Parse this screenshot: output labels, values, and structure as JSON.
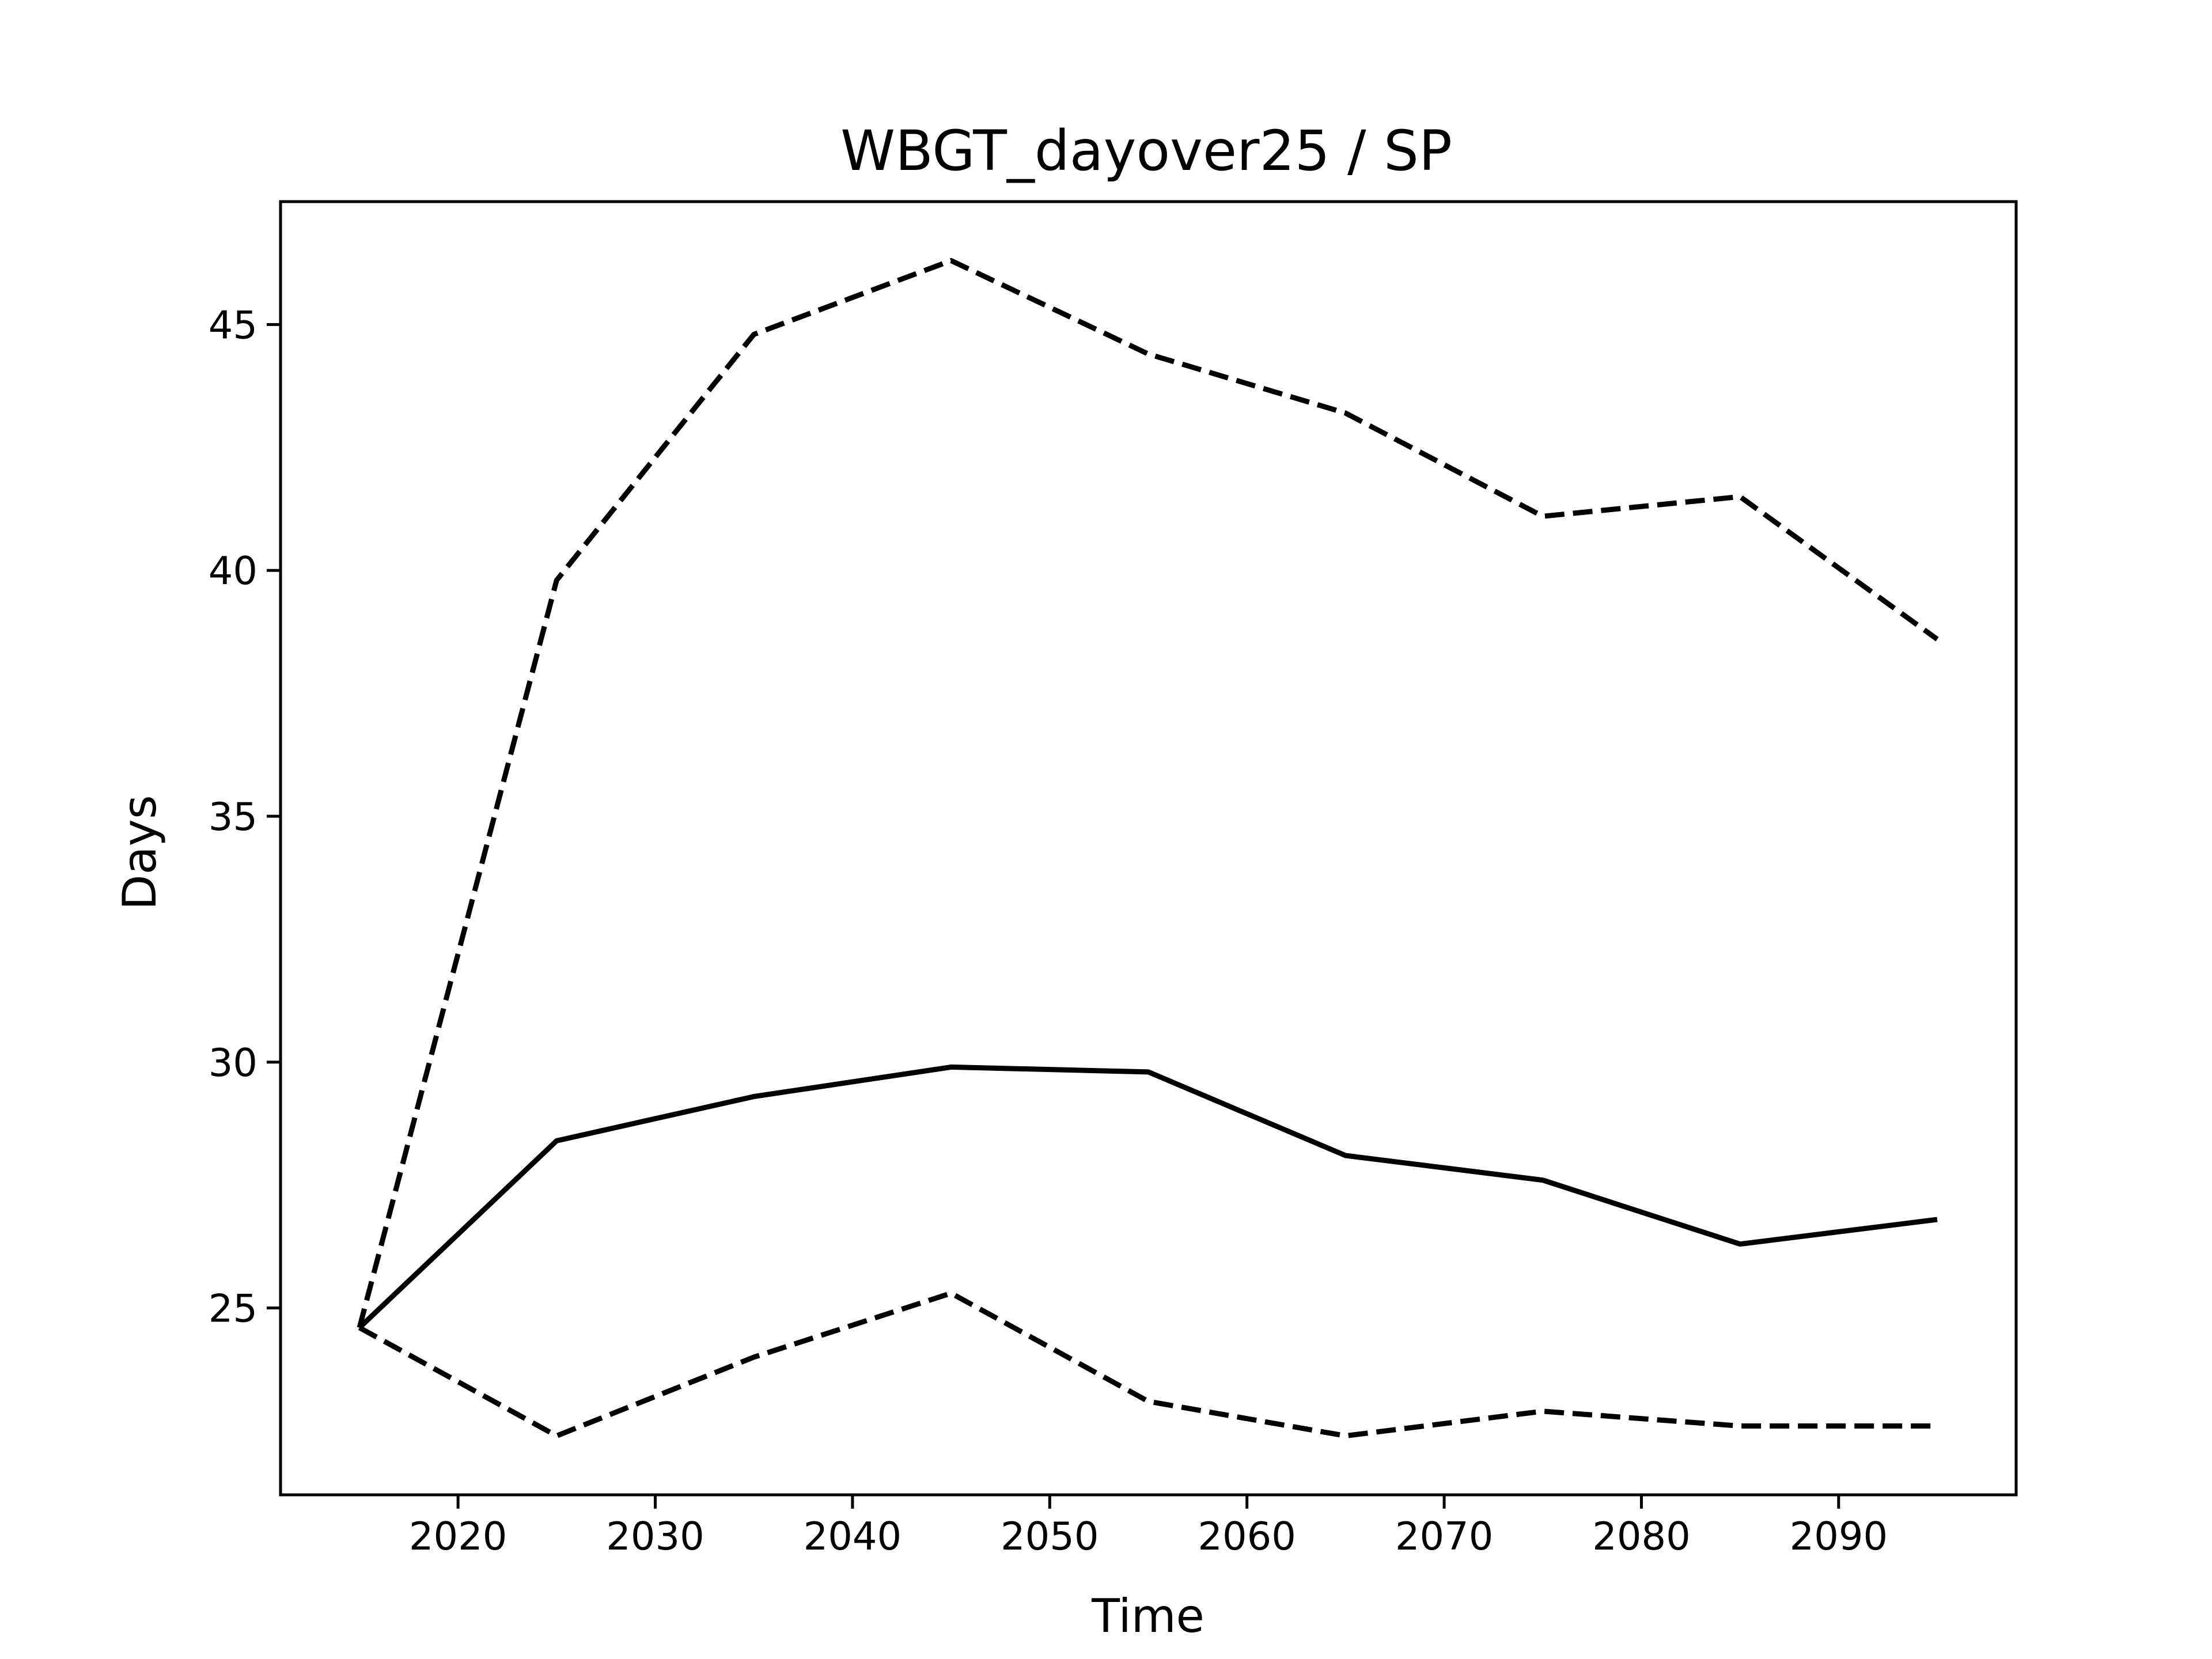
{
  "chart_data": {
    "type": "line",
    "title": "WBGT_dayover25 / SP",
    "xlabel": "Time",
    "ylabel": "Days",
    "xlim": [
      2011,
      2099
    ],
    "ylim": [
      21.2,
      47.5
    ],
    "xticks": [
      2020,
      2030,
      2040,
      2050,
      2060,
      2070,
      2080,
      2090
    ],
    "yticks": [
      25,
      30,
      35,
      40,
      45
    ],
    "grid": false,
    "legend": "none",
    "x": [
      2015,
      2025,
      2035,
      2045,
      2055,
      2065,
      2075,
      2085,
      2095
    ],
    "series": [
      {
        "style": "solid",
        "color": "#000000",
        "values": [
          24.6,
          28.4,
          29.3,
          29.9,
          29.8,
          28.1,
          27.6,
          26.3,
          26.8
        ]
      },
      {
        "style": "dashed",
        "color": "#000000",
        "values": [
          24.6,
          39.8,
          44.8,
          46.3,
          44.4,
          43.2,
          41.1,
          41.5,
          38.6
        ]
      },
      {
        "style": "dashed",
        "color": "#000000",
        "values": [
          24.6,
          22.4,
          24.0,
          25.3,
          23.1,
          22.4,
          22.9,
          22.6,
          22.6
        ]
      }
    ]
  }
}
